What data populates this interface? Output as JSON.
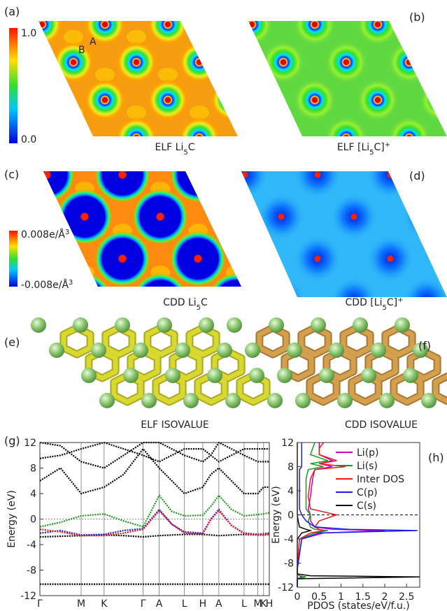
{
  "panels": {
    "a": {
      "letter": "(a)",
      "caption": {
        "text": "ELF  Li",
        "sub": "5",
        "tail": "C"
      },
      "colorbar": {
        "max": "1.0",
        "min": "0.0"
      },
      "sites": [
        "A",
        "B"
      ]
    },
    "b": {
      "letter": "(b)",
      "caption": {
        "text": "ELF  [Li",
        "sub": "5",
        "tail": "C]",
        "sup": "+"
      }
    },
    "c": {
      "letter": "(c)",
      "caption": {
        "text": "CDD Li",
        "sub": "5",
        "tail": "C"
      },
      "colorbar": {
        "max": {
          "text": "0.008e/Å",
          "sup": "3"
        },
        "min": {
          "text": "-0.008e/Å",
          "sup": "3"
        }
      }
    },
    "d": {
      "letter": "(d)",
      "caption": {
        "text": "CDD  [Li",
        "sub": "5",
        "tail": "C]",
        "sup": "+"
      }
    },
    "e": {
      "letter": "(e)",
      "caption": "ELF ISOVALUE"
    },
    "f": {
      "letter": "(f)",
      "caption": "CDD ISOVALUE"
    },
    "g": {
      "letter": "(g)"
    },
    "h": {
      "letter": "(h)"
    }
  },
  "chart_data": [
    {
      "type": "line",
      "ylabel": "Energy (eV)",
      "x": [
        0,
        0.09,
        0.18,
        0.28,
        0.365,
        0.45,
        0.52,
        0.575,
        0.63,
        0.71,
        0.745,
        0.78,
        0.835,
        0.89,
        0.95,
        0.975,
        1.0
      ],
      "xlim": [
        0,
        1
      ],
      "xticks": [
        {
          "value": 0,
          "label": "Γ"
        },
        {
          "value": 0.18,
          "label": "M"
        },
        {
          "value": 0.28,
          "label": "K"
        },
        {
          "value": 0.45,
          "label": "Γ"
        },
        {
          "value": 0.52,
          "label": "A"
        },
        {
          "value": 0.63,
          "label": "L"
        },
        {
          "value": 0.71,
          "label": "H"
        },
        {
          "value": 0.78,
          "label": "A"
        },
        {
          "value": 0.89,
          "label": "L"
        },
        {
          "value": 0.95,
          "label": "M"
        },
        {
          "value": 0.975,
          "label": "K"
        },
        {
          "value": 1.0,
          "label": "H"
        }
      ],
      "ylim": [
        -12,
        12
      ],
      "yticks": [
        -12,
        -8,
        -4,
        0,
        4,
        8,
        12
      ],
      "fermi_level": 0,
      "series": [
        {
          "color": "#000000",
          "values": [
            -10.2,
            -10.2,
            -10.2,
            -10.2,
            -10.2,
            -10.2,
            -10.2,
            -10.2,
            -10.2,
            -10.2,
            -10.2,
            -10.2,
            -10.2,
            -10.2,
            -10.2,
            -10.2,
            -10.2
          ]
        },
        {
          "color": "#000000",
          "values": [
            -2.8,
            -2.7,
            -2.6,
            -2.5,
            -2.6,
            -2.8,
            -2.6,
            -2.5,
            -2.4,
            -2.4,
            -2.5,
            -2.6,
            -2.5,
            -2.4,
            -2.5,
            -2.5,
            -2.4
          ]
        },
        {
          "color": "#1a9a1a",
          "values": [
            -1.2,
            -0.5,
            0.5,
            0.8,
            -0.3,
            -1.2,
            3.7,
            1.2,
            0.5,
            0.6,
            2.0,
            3.7,
            1.5,
            0.5,
            0.7,
            0.8,
            1.0
          ]
        },
        {
          "color": "#1a1aee",
          "values": [
            -2.2,
            -1.8,
            -2.5,
            -2.4,
            -1.8,
            -1.5,
            1.5,
            -0.8,
            -2.0,
            -2.2,
            0,
            1.5,
            -1.0,
            -2.2,
            -2.4,
            -2.3,
            -2.2
          ]
        },
        {
          "color": "#ee1a1a",
          "values": [
            -1.6,
            -2.0,
            -2.6,
            -2.6,
            -2.2,
            -1.6,
            1.3,
            -0.8,
            -2.2,
            -2.3,
            -0.1,
            1.3,
            -1.0,
            -2.3,
            -2.5,
            -2.5,
            -2.4
          ]
        },
        {
          "color": "#000000",
          "values": [
            6,
            8,
            4,
            5,
            7,
            11,
            8,
            6,
            4,
            5,
            7,
            8,
            6,
            4,
            4,
            5,
            5
          ]
        },
        {
          "color": "#000000",
          "values": [
            9.5,
            10,
            11,
            12,
            11,
            10,
            9,
            10,
            11,
            11,
            10,
            9,
            10,
            11,
            11,
            11,
            11
          ]
        },
        {
          "color": "#000000",
          "values": [
            12,
            11.5,
            9,
            8,
            10,
            12,
            12,
            11,
            10,
            9,
            10,
            12,
            11,
            10,
            9,
            9,
            9
          ]
        }
      ]
    },
    {
      "type": "line",
      "orientation": "horizontal",
      "xlabel": "PDOS (states/eV/f.u.)",
      "ylabel": "Energy (eV)",
      "energy": [
        -12,
        -10.6,
        -10.3,
        -10.1,
        -9.8,
        -9,
        -4,
        -3,
        -2.6,
        -2.4,
        -2,
        -1,
        0,
        1,
        3,
        6,
        7.5,
        8,
        8.5,
        9,
        10,
        11,
        12
      ],
      "xlim": [
        0,
        2.8
      ],
      "xticks": [
        0,
        0.5,
        1,
        1.5,
        2,
        2.5
      ],
      "ylim": [
        -12,
        12
      ],
      "yticks": [
        -12,
        -8,
        -4,
        0,
        4,
        8,
        12
      ],
      "fermi_level": 0,
      "legend": "upper right",
      "series": [
        {
          "name": "Li(p)",
          "color": "#cc00cc",
          "values": [
            0,
            0,
            0.1,
            0.05,
            0,
            0,
            0.1,
            0.6,
            2.0,
            0.8,
            0.4,
            0.3,
            0.3,
            0.25,
            0.3,
            0.35,
            0.4,
            0.8,
            0.5,
            0.8,
            0.5,
            0.5,
            0.5
          ]
        },
        {
          "name": "Li(s)",
          "color": "#1a9a1a",
          "values": [
            0,
            0,
            0.2,
            0.05,
            0,
            0,
            0.05,
            0.4,
            0.7,
            0.4,
            0.3,
            0.25,
            0.3,
            0.2,
            0.2,
            0.2,
            0.25,
            0.6,
            0.3,
            0.7,
            0.3,
            0.35,
            0.4
          ]
        },
        {
          "name": "Inter DOS",
          "color": "#ee1a1a",
          "values": [
            0,
            0,
            0,
            0,
            0,
            0,
            0.05,
            0.3,
            0.6,
            0.5,
            0.4,
            0.5,
            0.9,
            0.3,
            0.25,
            0.3,
            0.4,
            1.1,
            0.5,
            0.9,
            0.5,
            0.5,
            0.6
          ]
        },
        {
          "name": "C(p)",
          "color": "#1a1aee",
          "values": [
            0,
            0,
            0,
            0,
            0,
            0,
            0.1,
            0.5,
            2.75,
            1.2,
            0.4,
            0.2,
            0.1,
            0.05,
            0.05,
            0.05,
            0.05,
            0.1,
            0.1,
            0.1,
            0.1,
            0.1,
            0.1
          ]
        },
        {
          "name": "C(s)",
          "color": "#000000",
          "values": [
            0,
            0,
            2.8,
            0.3,
            0,
            0,
            0,
            0.1,
            0.3,
            0.2,
            0.05,
            0.02,
            0,
            0,
            0,
            0,
            0,
            0,
            0,
            0,
            0,
            0,
            0
          ]
        }
      ]
    }
  ]
}
